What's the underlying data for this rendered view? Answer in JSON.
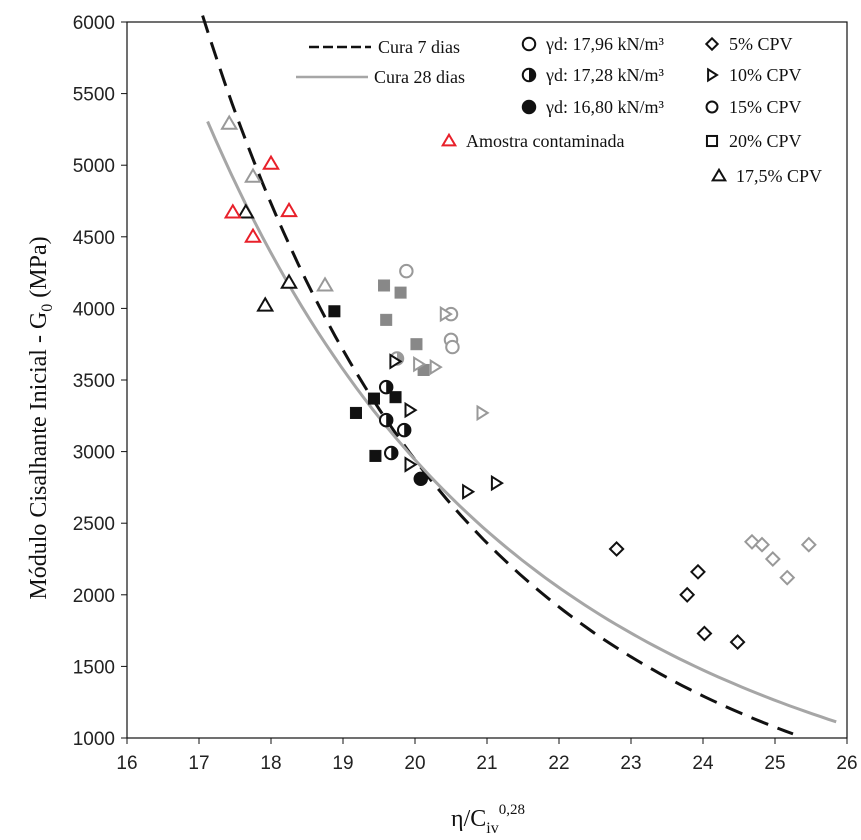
{
  "chart_data": {
    "type": "scatter",
    "title": "",
    "xlabel": "η/Civ^0,28",
    "xlabel_parts": {
      "base": "η/C",
      "sub": "iv",
      "sup": "0,28"
    },
    "ylabel": "Módulo Cisalhante Inicial - G0 (MPa)",
    "ylabel_parts": {
      "main": "Módulo Cisalhante Inicial - G",
      "sub": "0",
      "unit": " (MPa)"
    },
    "xlim": [
      16,
      26
    ],
    "ylim": [
      1000,
      6000
    ],
    "x_ticks": [
      16,
      17,
      18,
      19,
      20,
      21,
      22,
      23,
      24,
      25,
      26
    ],
    "y_ticks": [
      1000,
      1500,
      2000,
      2500,
      3000,
      3500,
      4000,
      4500,
      5000,
      5500,
      6000
    ],
    "grid": false,
    "legend_placement": "top-right",
    "legend": {
      "curves": [
        {
          "label": "Cura 7 dias",
          "style": "dashed",
          "color": "#111111"
        },
        {
          "label": "Cura 28 dias",
          "style": "solid",
          "color": "#a6a6a6"
        }
      ],
      "densities": [
        {
          "label": "γd: 17,96 kN/m³",
          "fill": "empty"
        },
        {
          "label": "γd: 17,28 kN/m³",
          "fill": "half"
        },
        {
          "label": "γd: 16,80 kN/m³",
          "fill": "full"
        }
      ],
      "contaminated": {
        "label": "Amostra contaminada",
        "color": "#e8202a"
      },
      "cement": [
        {
          "label": "5%  CPV",
          "marker": "diamond"
        },
        {
          "label": "10% CPV",
          "marker": "triangle-right"
        },
        {
          "label": "15% CPV",
          "marker": "circle"
        },
        {
          "label": "20% CPV",
          "marker": "square"
        },
        {
          "label": "17,5% CPV",
          "marker": "triangle-up"
        }
      ]
    },
    "curves": [
      {
        "name": "Cura 7 dias",
        "style": "dashed",
        "color": "#111111",
        "x_range": [
          17.05,
          25.25
        ],
        "a": 2170000000.0,
        "b": -4.51
      },
      {
        "name": "Cura 28 dias",
        "style": "solid",
        "color": "#a6a6a6",
        "x_range": [
          17.12,
          25.85
        ],
        "a": 251000000.0,
        "b": -3.79
      }
    ],
    "points": [
      {
        "x": 17.42,
        "y": 5290,
        "marker": "triangle-up",
        "fill": "empty",
        "color": "#999999"
      },
      {
        "x": 17.75,
        "y": 4920,
        "marker": "triangle-up",
        "fill": "empty",
        "color": "#999999"
      },
      {
        "x": 18.75,
        "y": 4160,
        "marker": "triangle-up",
        "fill": "empty",
        "color": "#999999"
      },
      {
        "x": 17.65,
        "y": 4670,
        "marker": "triangle-up",
        "fill": "empty",
        "color": "#111111"
      },
      {
        "x": 17.92,
        "y": 4020,
        "marker": "triangle-up",
        "fill": "empty",
        "color": "#111111"
      },
      {
        "x": 18.25,
        "y": 4180,
        "marker": "triangle-up",
        "fill": "empty",
        "color": "#111111"
      },
      {
        "x": 17.47,
        "y": 4670,
        "marker": "triangle-up",
        "fill": "empty",
        "color": "#e8202a"
      },
      {
        "x": 17.75,
        "y": 4500,
        "marker": "triangle-up",
        "fill": "empty",
        "color": "#e8202a"
      },
      {
        "x": 18.0,
        "y": 5010,
        "marker": "triangle-up",
        "fill": "empty",
        "color": "#e8202a"
      },
      {
        "x": 18.25,
        "y": 4680,
        "marker": "triangle-up",
        "fill": "empty",
        "color": "#e8202a"
      },
      {
        "x": 19.57,
        "y": 4160,
        "marker": "square",
        "fill": "full",
        "color": "#888888"
      },
      {
        "x": 19.6,
        "y": 3920,
        "marker": "square",
        "fill": "full",
        "color": "#888888"
      },
      {
        "x": 19.8,
        "y": 4110,
        "marker": "square",
        "fill": "full",
        "color": "#888888"
      },
      {
        "x": 20.02,
        "y": 3750,
        "marker": "square",
        "fill": "full",
        "color": "#888888"
      },
      {
        "x": 20.12,
        "y": 3570,
        "marker": "square",
        "fill": "full",
        "color": "#888888"
      },
      {
        "x": 18.88,
        "y": 3980,
        "marker": "square",
        "fill": "full",
        "color": "#111111"
      },
      {
        "x": 19.18,
        "y": 3270,
        "marker": "square",
        "fill": "full",
        "color": "#111111"
      },
      {
        "x": 19.43,
        "y": 3370,
        "marker": "square",
        "fill": "full",
        "color": "#111111"
      },
      {
        "x": 19.73,
        "y": 3380,
        "marker": "square",
        "fill": "full",
        "color": "#111111"
      },
      {
        "x": 19.45,
        "y": 2970,
        "marker": "square",
        "fill": "full",
        "color": "#111111"
      },
      {
        "x": 19.88,
        "y": 4260,
        "marker": "circle",
        "fill": "empty",
        "color": "#999999"
      },
      {
        "x": 20.5,
        "y": 3960,
        "marker": "circle",
        "fill": "empty",
        "color": "#999999"
      },
      {
        "x": 20.5,
        "y": 3780,
        "marker": "circle",
        "fill": "empty",
        "color": "#999999"
      },
      {
        "x": 20.52,
        "y": 3730,
        "marker": "circle",
        "fill": "empty",
        "color": "#999999"
      },
      {
        "x": 19.75,
        "y": 3650,
        "marker": "circle",
        "fill": "half",
        "color": "#999999"
      },
      {
        "x": 19.6,
        "y": 3450,
        "marker": "circle",
        "fill": "half",
        "color": "#111111"
      },
      {
        "x": 19.6,
        "y": 3220,
        "marker": "circle",
        "fill": "half",
        "color": "#111111"
      },
      {
        "x": 19.85,
        "y": 3150,
        "marker": "circle",
        "fill": "half",
        "color": "#111111"
      },
      {
        "x": 19.67,
        "y": 2990,
        "marker": "circle",
        "fill": "half",
        "color": "#111111"
      },
      {
        "x": 20.08,
        "y": 2810,
        "marker": "circle",
        "fill": "full",
        "color": "#111111"
      },
      {
        "x": 20.42,
        "y": 3960,
        "marker": "triangle-right",
        "fill": "empty",
        "color": "#999999"
      },
      {
        "x": 20.05,
        "y": 3610,
        "marker": "triangle-right",
        "fill": "empty",
        "color": "#999999"
      },
      {
        "x": 20.28,
        "y": 3590,
        "marker": "triangle-right",
        "fill": "empty",
        "color": "#999999"
      },
      {
        "x": 20.93,
        "y": 3270,
        "marker": "triangle-right",
        "fill": "empty",
        "color": "#999999"
      },
      {
        "x": 19.72,
        "y": 3630,
        "marker": "triangle-right",
        "fill": "empty",
        "color": "#111111"
      },
      {
        "x": 19.93,
        "y": 3290,
        "marker": "triangle-right",
        "fill": "empty",
        "color": "#111111"
      },
      {
        "x": 19.93,
        "y": 2910,
        "marker": "triangle-right",
        "fill": "empty",
        "color": "#111111"
      },
      {
        "x": 20.73,
        "y": 2720,
        "marker": "triangle-right",
        "fill": "empty",
        "color": "#111111"
      },
      {
        "x": 21.13,
        "y": 2780,
        "marker": "triangle-right",
        "fill": "empty",
        "color": "#111111"
      },
      {
        "x": 22.8,
        "y": 2320,
        "marker": "diamond",
        "fill": "empty",
        "color": "#111111"
      },
      {
        "x": 23.93,
        "y": 2160,
        "marker": "diamond",
        "fill": "empty",
        "color": "#111111"
      },
      {
        "x": 23.78,
        "y": 2000,
        "marker": "diamond",
        "fill": "empty",
        "color": "#111111"
      },
      {
        "x": 24.02,
        "y": 1730,
        "marker": "diamond",
        "fill": "empty",
        "color": "#111111"
      },
      {
        "x": 24.48,
        "y": 1670,
        "marker": "diamond",
        "fill": "empty",
        "color": "#111111"
      },
      {
        "x": 24.68,
        "y": 2370,
        "marker": "diamond",
        "fill": "empty",
        "color": "#999999"
      },
      {
        "x": 24.82,
        "y": 2350,
        "marker": "diamond",
        "fill": "empty",
        "color": "#999999"
      },
      {
        "x": 24.97,
        "y": 2250,
        "marker": "diamond",
        "fill": "empty",
        "color": "#999999"
      },
      {
        "x": 25.17,
        "y": 2120,
        "marker": "diamond",
        "fill": "empty",
        "color": "#999999"
      },
      {
        "x": 25.47,
        "y": 2350,
        "marker": "diamond",
        "fill": "empty",
        "color": "#999999"
      }
    ]
  }
}
